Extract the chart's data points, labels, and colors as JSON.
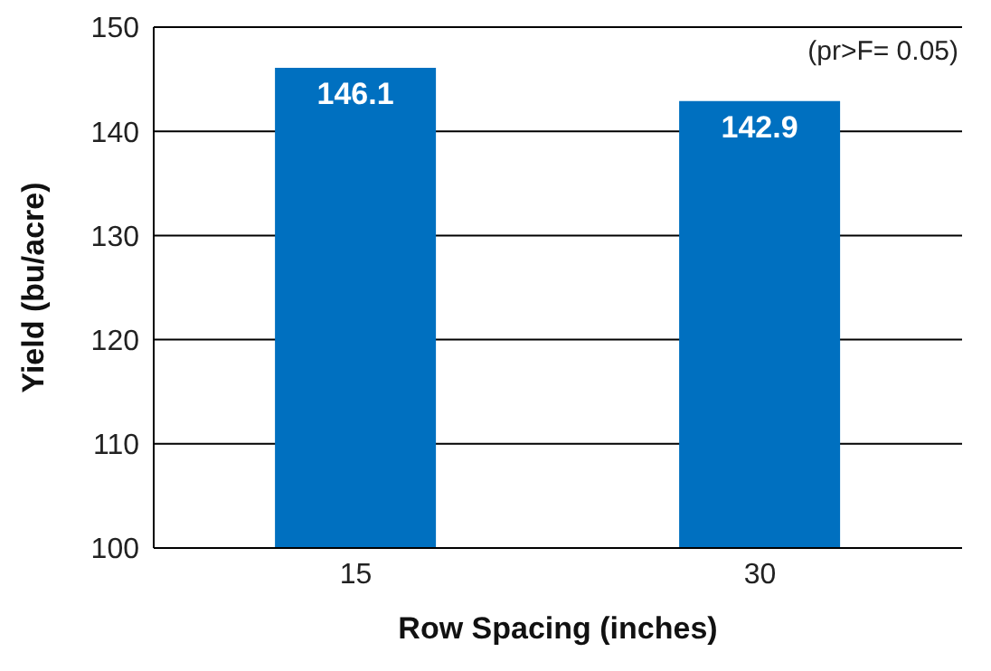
{
  "chart_data": {
    "type": "bar",
    "xlabel": "Row Spacing (inches)",
    "ylabel": "Yield (bu/acre)",
    "categories": [
      "15",
      "30"
    ],
    "values": [
      146.1,
      142.9
    ],
    "color": "#0070c0",
    "ylim": [
      100,
      150
    ],
    "yticks": [
      100,
      110,
      120,
      130,
      140,
      150
    ],
    "grid": "y",
    "data_labels": true,
    "annotations": [
      "(pr>F= 0.05)"
    ]
  }
}
